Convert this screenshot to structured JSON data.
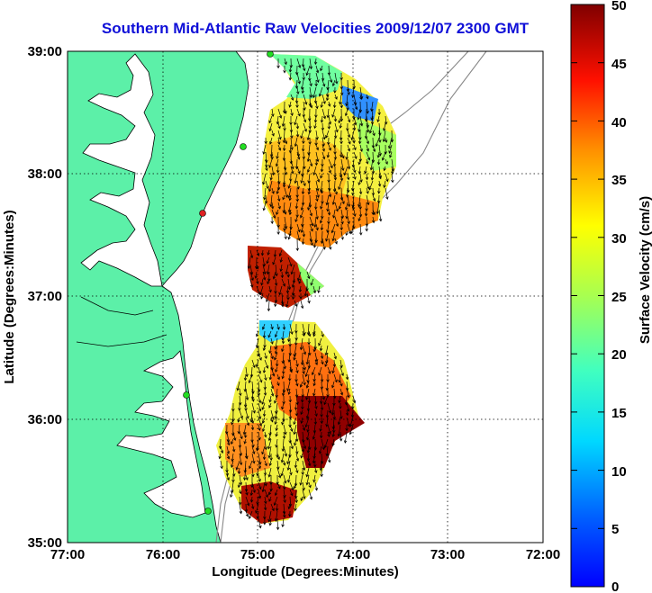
{
  "title": "Southern Mid-Atlantic Raw Velocities 2009/12/07 2300 GMT",
  "map": {
    "xlabel": "Longitude (Degrees:Minutes)",
    "ylabel": "Latitude (Degrees:Minutes)",
    "x_ticks": [
      "77:00",
      "76:00",
      "75:00",
      "74:00",
      "73:00",
      "72:00"
    ],
    "y_ticks": [
      "39:00",
      "38:00",
      "37:00",
      "36:00",
      "35:00"
    ],
    "land_color": "#5cf0a8",
    "grid": "dotted"
  },
  "colorbar": {
    "label": "Surface Velocity (cm/s)",
    "unit": "cm/s",
    "range": [
      0,
      50
    ],
    "ticks": [
      "50",
      "45",
      "40",
      "35",
      "30",
      "25",
      "20",
      "15",
      "10",
      "5",
      "0"
    ],
    "colormap": "jet"
  },
  "stations": [
    {
      "status_color": "#22dd22"
    },
    {
      "status_color": "#22dd22"
    },
    {
      "status_color": "#dd2222"
    },
    {
      "status_color": "#22dd22"
    },
    {
      "status_color": "#22dd22"
    }
  ]
}
